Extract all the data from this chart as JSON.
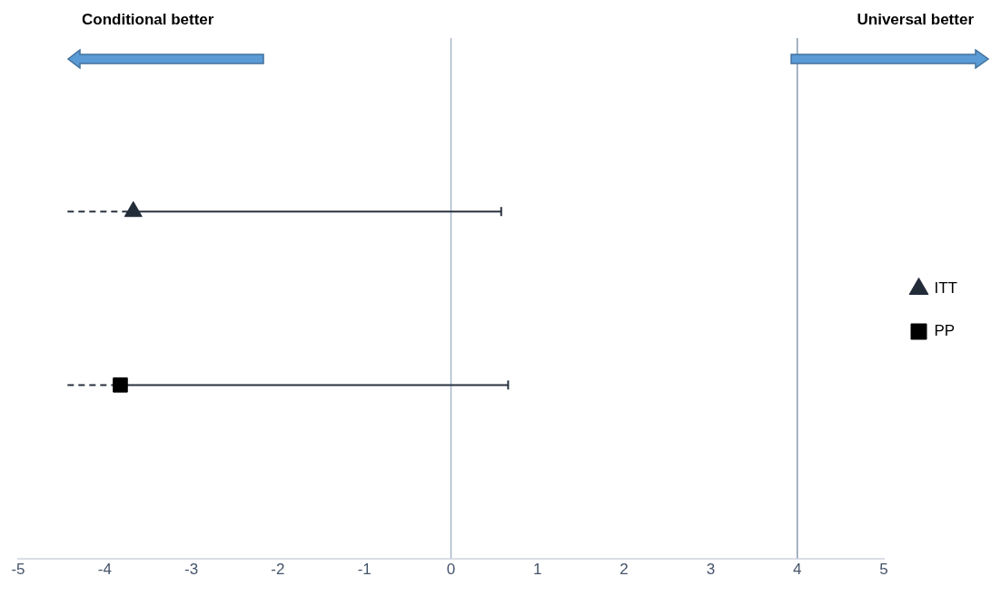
{
  "chart_data": {
    "type": "scatter",
    "orientation": "horizontal",
    "categories": [
      null,
      null,
      null,
      null
    ],
    "series": [
      {
        "name": "ITT",
        "color": "#222b38",
        "marker": "triangle",
        "values": [
          null,
          -3.67,
          null,
          null
        ],
        "errors": [
          null,
          [
            -4.43,
            0.58
          ],
          null,
          null
        ]
      },
      {
        "name": "PP",
        "color": "#000000",
        "marker": "square",
        "values": [
          null,
          null,
          -3.82,
          null
        ],
        "errors": [
          null,
          null,
          [
            -4.43,
            0.66
          ],
          null
        ]
      }
    ],
    "xlim": [
      -5,
      5
    ],
    "xticks": [
      -5,
      -4,
      -3,
      -2,
      -1,
      0,
      1,
      2,
      3,
      4,
      5
    ],
    "grid": false,
    "legend": "right",
    "ref_lines": [
      {
        "axis": "x",
        "value": 0,
        "color": "#a8b6c8"
      },
      {
        "axis": "x",
        "value": 4,
        "color": "#8899b0"
      }
    ],
    "annotations": [
      "Conditional better",
      "Universal better"
    ]
  }
}
